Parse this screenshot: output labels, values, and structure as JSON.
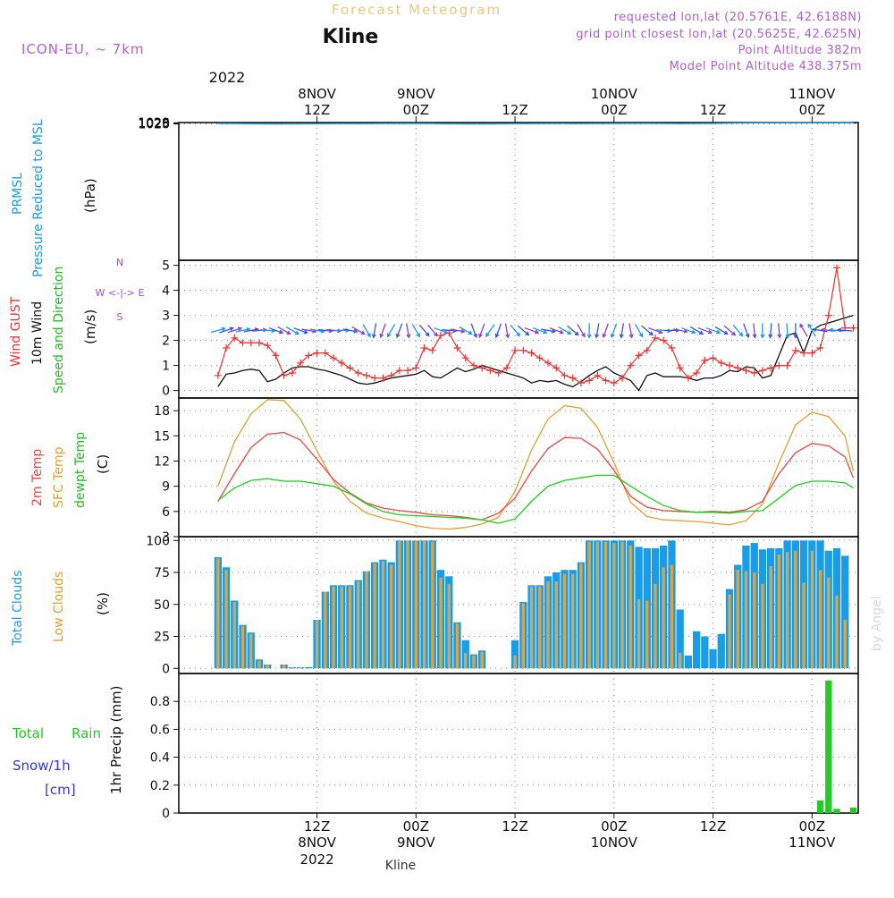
{
  "header": {
    "overtitle": "Forecast Meteogram",
    "location": "Kline",
    "model": "ICON-EU, ~ 7km",
    "requested": "requested lon,lat (20.5761E, 42.6188N)",
    "grid_point": "grid point closest lon,lat (20.5625E, 42.625N)",
    "point_altitude": "Point Altitude 382m",
    "model_altitude": "Model Point Altitude 438.375m",
    "footer_location": "Kline",
    "watermark": "by Angel"
  },
  "colors": {
    "pressure": "#1a9ce6",
    "gust": "#ee3333",
    "wind": "#111111",
    "temp": "#ee4444",
    "sfc": "#e0a030",
    "dew": "#22cc22",
    "total_cloud": "#1a9ce6",
    "low_cloud": "#d4a850",
    "rain": "#22cc22",
    "snow": "#3333ee",
    "purple": "#a050d0"
  },
  "top_axis": {
    "year": "2022",
    "ticks": [
      {
        "t": 12,
        "line1": "8NOV",
        "line2": "12Z"
      },
      {
        "t": 24,
        "line1": "9NOV",
        "line2": "00Z"
      },
      {
        "t": 36,
        "line1": "",
        "line2": "12Z"
      },
      {
        "t": 48,
        "line1": "10NOV",
        "line2": "00Z"
      },
      {
        "t": 60,
        "line1": "",
        "line2": "12Z"
      },
      {
        "t": 72,
        "line1": "11NOV",
        "line2": "00Z"
      }
    ]
  },
  "bottom_axis": {
    "ticks": [
      {
        "t": 12,
        "line1": "12Z",
        "line2": "8NOV",
        "line3": "2022"
      },
      {
        "t": 24,
        "line1": "00Z",
        "line2": "9NOV",
        "line3": ""
      },
      {
        "t": 36,
        "line1": "12Z",
        "line2": "",
        "line3": ""
      },
      {
        "t": 48,
        "line1": "00Z",
        "line2": "10NOV",
        "line3": ""
      },
      {
        "t": 60,
        "line1": "12Z",
        "line2": "",
        "line3": ""
      },
      {
        "t": 72,
        "line1": "00Z",
        "line2": "11NOV",
        "line3": ""
      }
    ]
  },
  "panels": {
    "pressure": {
      "label1": "PRMSL",
      "label2": "Pressure Reduced to MSL",
      "unit": "(hPa)"
    },
    "wind": {
      "label_gust": "Wind GUST",
      "label_wind": "10m Wind",
      "label_dir": "Speed and Direction",
      "unit": "(m/s)",
      "compass_n": "N",
      "compass_s": "S",
      "compass_we": "W <-|-> E"
    },
    "temp": {
      "label_t2m": "2m Temp",
      "label_sfc": "SFC Temp",
      "label_dew": "dewpt Temp",
      "unit": "(C)"
    },
    "cloud": {
      "label_total": "Total Clouds",
      "label_low": "Low Clouds",
      "unit": "(%)"
    },
    "precip": {
      "label_rain_a": "Total",
      "label_rain_b": "Rain",
      "label_snow": "Snow/1h",
      "label_cm": "[cm]",
      "unit": "1hr Precip (mm)"
    }
  },
  "chart_data": [
    {
      "type": "line",
      "title": "PRMSL",
      "ylabel": "(hPa)",
      "x_unit": "hours from 8 NOV 2022 00Z",
      "ylim": [
        19.6,
        1030.6
      ],
      "yticks": [
        1020,
        1023,
        1026,
        1029
      ],
      "x": [
        0,
        2,
        4,
        6,
        8,
        10,
        12,
        14,
        16,
        18,
        20,
        22,
        24,
        26,
        28,
        30,
        32,
        34,
        36,
        38,
        40,
        42,
        44,
        46,
        48,
        50,
        52,
        54,
        56,
        58,
        60,
        62,
        64,
        66,
        68,
        70,
        72,
        74,
        76,
        77
      ],
      "series": [
        {
          "name": "PRMSL",
          "values": [
            1023.7,
            1023.2,
            1021.8,
            1020.6,
            1020.3,
            1021.2,
            1022.3,
            1022.9,
            1023.0,
            1022.9,
            1023.3,
            1023.9,
            1024.3,
            1023.5,
            1021.4,
            1020.3,
            1020.2,
            1021.2,
            1022.6,
            1022.9,
            1023.1,
            1023.3,
            1023.0,
            1023.3,
            1024.2,
            1025.0,
            1024.8,
            1023.5,
            1022.9,
            1023.1,
            1024.2,
            1026.0,
            1027.8,
            1028.9,
            1029.3,
            1029.3,
            1029.4,
            1030.3,
            1030.6,
            1029.3
          ]
        }
      ]
    },
    {
      "type": "line",
      "title": "Wind GUST / 10m Wind Speed and Direction",
      "ylabel": "(m/s)",
      "ylim": [
        -0.3,
        5.2
      ],
      "yticks": [
        0,
        1,
        2,
        3,
        4,
        5
      ],
      "x": [
        0,
        1,
        2,
        3,
        4,
        5,
        6,
        7,
        8,
        9,
        10,
        11,
        12,
        13,
        14,
        15,
        16,
        17,
        18,
        19,
        20,
        21,
        22,
        23,
        24,
        25,
        26,
        27,
        28,
        29,
        30,
        31,
        32,
        33,
        34,
        35,
        36,
        37,
        38,
        39,
        40,
        41,
        42,
        43,
        44,
        45,
        46,
        47,
        48,
        49,
        50,
        51,
        52,
        53,
        54,
        55,
        56,
        57,
        58,
        59,
        60,
        61,
        62,
        63,
        64,
        65,
        66,
        67,
        68,
        69,
        70,
        71,
        72,
        73,
        74,
        75,
        76,
        77
      ],
      "series": [
        {
          "name": "Wind GUST",
          "values": [
            0.6,
            1.7,
            2.1,
            1.9,
            1.9,
            1.9,
            1.8,
            1.4,
            0.6,
            0.7,
            1.1,
            1.4,
            1.5,
            1.5,
            1.3,
            1.1,
            0.9,
            0.7,
            0.6,
            0.5,
            0.5,
            0.6,
            0.8,
            0.8,
            0.9,
            1.7,
            1.6,
            2.2,
            2.3,
            1.7,
            1.3,
            1.0,
            0.9,
            0.8,
            0.7,
            0.9,
            1.6,
            1.6,
            1.5,
            1.3,
            1.1,
            0.9,
            0.6,
            0.5,
            0.3,
            0.4,
            0.6,
            0.4,
            0.3,
            0.5,
            1.0,
            1.4,
            1.6,
            2.1,
            2.0,
            1.7,
            0.9,
            0.5,
            0.7,
            1.2,
            1.3,
            1.1,
            1.0,
            0.9,
            0.8,
            0.7,
            0.8,
            0.9,
            1.0,
            1.0,
            1.6,
            1.5,
            1.5,
            1.7,
            3.0,
            4.9,
            2.5,
            2.5
          ]
        },
        {
          "name": "10m Wind",
          "values": [
            0.15,
            0.65,
            0.7,
            0.8,
            0.85,
            0.8,
            0.35,
            0.45,
            0.7,
            0.9,
            0.95,
            0.95,
            0.85,
            0.8,
            0.7,
            0.6,
            0.45,
            0.3,
            0.25,
            0.3,
            0.4,
            0.5,
            0.55,
            0.6,
            0.65,
            0.8,
            0.55,
            0.5,
            0.7,
            0.9,
            0.75,
            0.85,
            1.0,
            0.9,
            0.8,
            0.7,
            0.6,
            0.5,
            0.3,
            0.4,
            0.35,
            0.4,
            0.25,
            0.15,
            0.35,
            0.6,
            0.8,
            0.95,
            0.7,
            0.55,
            0.4,
            0.0,
            0.6,
            0.7,
            0.55,
            0.55,
            0.55,
            0.5,
            0.4,
            0.5,
            0.5,
            0.6,
            0.8,
            0.75,
            0.95,
            0.9,
            0.5,
            0.6,
            1.4,
            2.2,
            2.3,
            1.5,
            2.4,
            2.6,
            2.7,
            2.8,
            2.9,
            3.0
          ]
        }
      ]
    },
    {
      "type": "line",
      "title": "2m Temp / SFC Temp / dewpt Temp",
      "ylabel": "(C)",
      "ylim": [
        3,
        19.5
      ],
      "yticks": [
        3,
        6,
        9,
        12,
        15,
        18
      ],
      "x": [
        0,
        2,
        4,
        6,
        8,
        10,
        12,
        14,
        16,
        18,
        20,
        22,
        24,
        26,
        28,
        30,
        32,
        34,
        36,
        38,
        40,
        42,
        44,
        46,
        48,
        50,
        52,
        54,
        56,
        58,
        60,
        62,
        64,
        66,
        68,
        70,
        72,
        74,
        76,
        77
      ],
      "series": [
        {
          "name": "2m Temp",
          "values": [
            7.2,
            10.5,
            13.6,
            15.2,
            15.4,
            14.5,
            12.2,
            9.8,
            8.2,
            7.0,
            6.4,
            6.1,
            5.9,
            5.6,
            5.5,
            5.3,
            5.0,
            5.8,
            7.6,
            10.8,
            13.5,
            14.8,
            14.7,
            13.4,
            10.9,
            7.8,
            6.5,
            6.1,
            6.0,
            5.9,
            6.0,
            5.9,
            6.2,
            7.2,
            10.5,
            13.0,
            14.1,
            13.8,
            12.5,
            10.0
          ]
        },
        {
          "name": "SFC Temp",
          "values": [
            9.0,
            14.3,
            17.6,
            19.3,
            19.2,
            17.0,
            13.2,
            9.6,
            7.2,
            5.8,
            5.2,
            4.8,
            4.3,
            4.0,
            3.9,
            4.1,
            4.5,
            5.3,
            8.4,
            13.3,
            17.0,
            18.6,
            18.3,
            16.0,
            11.8,
            7.1,
            5.4,
            5.0,
            4.9,
            4.8,
            4.6,
            4.4,
            4.9,
            6.9,
            11.8,
            16.3,
            17.8,
            17.3,
            15.0,
            10.8
          ]
        },
        {
          "name": "dewpt Temp",
          "values": [
            7.3,
            8.8,
            9.7,
            9.9,
            9.6,
            9.6,
            9.3,
            9.0,
            8.1,
            6.9,
            6.0,
            5.6,
            5.5,
            5.4,
            5.3,
            5.2,
            5.0,
            4.6,
            5.1,
            7.2,
            9.0,
            9.7,
            10.0,
            10.3,
            10.3,
            9.0,
            7.8,
            6.7,
            6.1,
            5.9,
            5.9,
            5.8,
            6.0,
            6.1,
            7.6,
            9.1,
            9.6,
            9.6,
            9.4,
            8.8
          ]
        }
      ]
    },
    {
      "type": "bar",
      "title": "Total Clouds / Low Clouds",
      "ylabel": "(%)",
      "ylim": [
        -4,
        103
      ],
      "yticks": [
        0,
        25,
        50,
        75,
        100
      ],
      "x": [
        0,
        1,
        2,
        3,
        4,
        5,
        6,
        7,
        8,
        9,
        10,
        11,
        12,
        13,
        14,
        15,
        16,
        17,
        18,
        19,
        20,
        21,
        22,
        23,
        24,
        25,
        26,
        27,
        28,
        29,
        30,
        31,
        32,
        33,
        34,
        35,
        36,
        37,
        38,
        39,
        40,
        41,
        42,
        43,
        44,
        45,
        46,
        47,
        48,
        49,
        50,
        51,
        52,
        53,
        54,
        55,
        56,
        57,
        58,
        59,
        60,
        61,
        62,
        63,
        64,
        65,
        66,
        67,
        68,
        69,
        70,
        71,
        72,
        73,
        74,
        75,
        76
      ],
      "series": [
        {
          "name": "Total Clouds",
          "values": [
            87,
            79,
            53,
            34,
            28,
            7,
            3,
            0,
            3,
            1,
            1,
            1,
            38,
            60,
            65,
            65,
            65,
            69,
            76,
            83,
            85,
            83,
            100,
            100,
            100,
            100,
            100,
            77,
            72,
            36,
            22,
            11,
            14,
            0,
            0,
            0,
            22,
            52,
            65,
            65,
            72,
            75,
            77,
            77,
            83,
            100,
            100,
            100,
            100,
            100,
            100,
            95,
            94,
            94,
            96,
            100,
            46,
            10,
            29,
            25,
            15,
            27,
            62,
            81,
            96,
            98,
            93,
            94,
            94,
            100,
            100,
            100,
            100,
            100,
            92,
            94,
            88
          ]
        },
        {
          "name": "Low Clouds",
          "values": [
            86,
            77,
            52,
            33,
            27,
            6,
            3,
            0,
            3,
            1,
            1,
            0,
            38,
            60,
            64,
            64,
            64,
            68,
            76,
            82,
            84,
            81,
            100,
            100,
            100,
            100,
            99,
            71,
            66,
            35,
            12,
            10,
            13,
            0,
            0,
            0,
            10,
            51,
            64,
            64,
            68,
            68,
            74,
            74,
            82,
            99,
            99,
            99,
            98,
            99,
            96,
            54,
            53,
            66,
            79,
            81,
            12,
            0,
            0,
            0,
            0,
            0,
            58,
            77,
            76,
            75,
            66,
            80,
            89,
            91,
            92,
            67,
            92,
            77,
            71,
            57,
            38
          ]
        }
      ]
    },
    {
      "type": "bar",
      "title": "1hr Precip",
      "ylabel": "1hr Precip (mm)",
      "ylim": [
        0,
        1.0
      ],
      "yticks": [
        0,
        0.2,
        0.4,
        0.6,
        0.8
      ],
      "x": [
        72,
        73,
        74,
        75,
        76,
        77
      ],
      "series": [
        {
          "name": "Total Rain",
          "values": [
            0.0,
            0.09,
            0.95,
            0.03,
            0.0,
            0.04
          ]
        }
      ]
    }
  ],
  "wind_barbs": {
    "x": [
      0,
      1,
      2,
      3,
      4,
      5,
      6,
      7,
      8,
      9,
      10,
      11,
      12,
      13,
      14,
      15,
      16,
      17,
      18,
      19,
      20,
      21,
      22,
      23,
      24,
      25,
      26,
      27,
      28,
      29,
      30,
      31,
      32,
      33,
      34,
      35,
      36,
      37,
      38,
      39,
      40,
      41,
      42,
      43,
      44,
      45,
      46,
      47,
      48,
      49,
      50,
      51,
      52,
      53,
      54,
      55,
      56,
      57,
      58,
      59,
      60,
      61,
      62,
      63,
      64,
      65,
      66,
      67,
      68,
      69,
      70,
      71,
      72,
      73,
      74,
      75,
      76
    ],
    "direction_deg": [
      75,
      70,
      72,
      78,
      80,
      85,
      95,
      110,
      120,
      120,
      110,
      100,
      100,
      95,
      95,
      90,
      100,
      120,
      150,
      190,
      200,
      210,
      200,
      170,
      150,
      140,
      140,
      110,
      95,
      100,
      120,
      160,
      200,
      215,
      200,
      170,
      140,
      130,
      110,
      110,
      100,
      110,
      120,
      130,
      150,
      180,
      190,
      200,
      200,
      190,
      170,
      150,
      130,
      110,
      95,
      90,
      100,
      110,
      120,
      110,
      110,
      120,
      130,
      140,
      160,
      175,
      180,
      185,
      175,
      175,
      180,
      330,
      330,
      280,
      275,
      275,
      275
    ]
  }
}
